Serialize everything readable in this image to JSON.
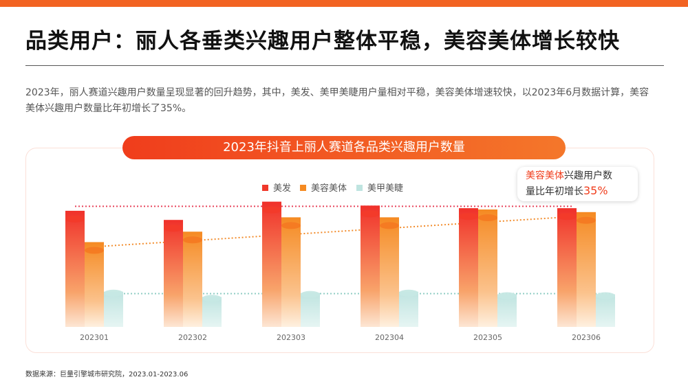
{
  "title": "品类用户：丽人各垂类兴趣用户整体平稳，美容美体增长较快",
  "description": "2023年，丽人赛道兴趣用户数量呈现显著的回升趋势，其中，美发、美甲美睫用户量相对平稳，美容美体增速较快，以2023年6月数据计算，美容美体兴趣用户数量比年初增长了35%。",
  "source": "数据来源：巨量引擎城市研究院，2023.01-2023.06",
  "annotation": {
    "highlight": "美容美体",
    "text1": "兴趣用户数",
    "text2": "量比年初增长",
    "value": "35%"
  },
  "colors": {
    "accent": "#f26322",
    "series": [
      "#f0382a",
      "#f58a22",
      "#bfe4e0"
    ]
  },
  "chart_data": {
    "type": "bar",
    "title": "2023年抖音上丽人赛道各品类兴趣用户数量",
    "categories": [
      "202301",
      "202302",
      "202303",
      "202304",
      "202305",
      "202306"
    ],
    "series": [
      {
        "name": "美发",
        "values": [
          89,
          82,
          96,
          93,
          91,
          91
        ]
      },
      {
        "name": "美容美体",
        "values": [
          65,
          73,
          84,
          84,
          90,
          88
        ]
      },
      {
        "name": "美甲美睫",
        "values": [
          27,
          23,
          26,
          27,
          25,
          25
        ]
      }
    ],
    "ylim": [
      0,
      100
    ],
    "xlabel": "",
    "ylabel": "",
    "grid": false,
    "legend": "top-left",
    "trendlines": true
  }
}
